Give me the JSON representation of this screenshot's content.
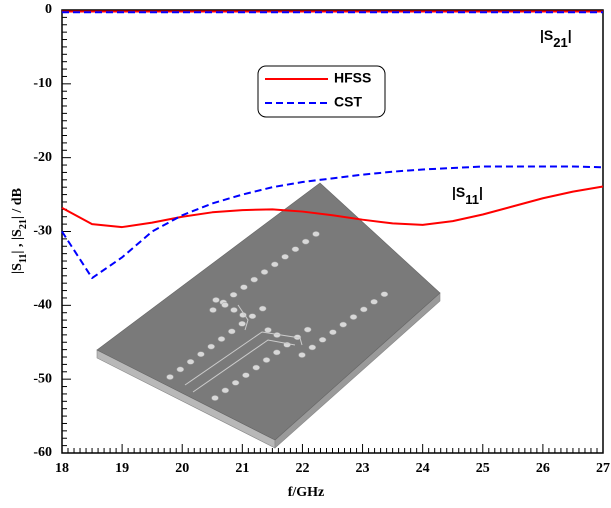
{
  "chart_data": {
    "type": "line",
    "x": [
      18,
      18.5,
      19,
      19.5,
      20,
      20.5,
      21,
      21.5,
      22,
      22.5,
      23,
      23.5,
      24,
      24.5,
      25,
      25.5,
      26,
      26.5,
      27
    ],
    "series": [
      {
        "name": "HFSS",
        "color": "#ff0000",
        "line_style": "solid",
        "s11": [
          -26.8,
          -29,
          -29.4,
          -28.8,
          -28,
          -27.4,
          -27.1,
          -27,
          -27.3,
          -27.8,
          -28.4,
          -28.9,
          -29.1,
          -28.6,
          -27.7,
          -26.6,
          -25.5,
          -24.6,
          -23.9
        ],
        "s21": [
          -0.2,
          -0.2,
          -0.2,
          -0.2,
          -0.2,
          -0.2,
          -0.2,
          -0.2,
          -0.2,
          -0.2,
          -0.2,
          -0.2,
          -0.2,
          -0.2,
          -0.2,
          -0.2,
          -0.2,
          -0.2,
          -0.2
        ]
      },
      {
        "name": "CST",
        "color": "#0000ff",
        "line_style": "dashed",
        "s11": [
          -30,
          -36.3,
          -33.5,
          -30,
          -27.8,
          -26.2,
          -25,
          -24,
          -23.3,
          -22.8,
          -22.3,
          -21.9,
          -21.6,
          -21.4,
          -21.2,
          -21.2,
          -21.2,
          -21.2,
          -21.3
        ],
        "s21": [
          -0.3,
          -0.3,
          -0.3,
          -0.3,
          -0.3,
          -0.3,
          -0.3,
          -0.3,
          -0.3,
          -0.3,
          -0.3,
          -0.3,
          -0.3,
          -0.3,
          -0.3,
          -0.3,
          -0.3,
          -0.3,
          -0.3
        ]
      }
    ],
    "xlabel": "f/GHz",
    "ylabel": [
      "|S",
      "11",
      "| , |S",
      "21",
      "|  /  dB"
    ],
    "annotation_s21": [
      "|S",
      "21",
      "|"
    ],
    "annotation_s11": [
      "|S",
      "11",
      "|"
    ],
    "xlim": [
      18,
      27
    ],
    "xticks": [
      18,
      19,
      20,
      21,
      22,
      23,
      24,
      25,
      26,
      27
    ],
    "ylim": [
      -60,
      0
    ],
    "yticks": [
      0,
      -10,
      -20,
      -30,
      -40,
      -50,
      -60
    ]
  }
}
